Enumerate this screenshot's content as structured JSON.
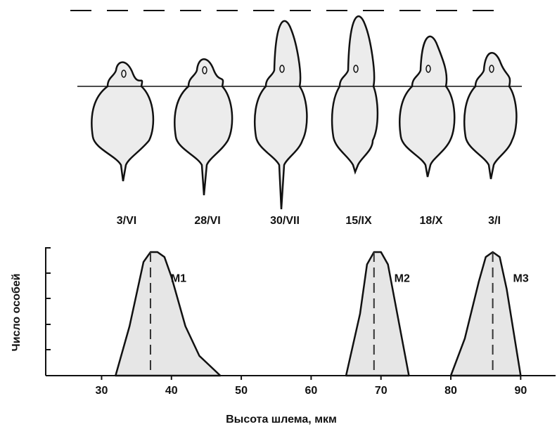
{
  "seasonal_forms": {
    "dates": [
      "3/VI",
      "28/VI",
      "30/VII",
      "15/IX",
      "18/X",
      "3/I"
    ]
  },
  "chart_data": {
    "type": "area",
    "xlabel": "Высота шлема, мкм",
    "ylabel": "Число особей",
    "xlim": [
      22,
      95
    ],
    "xticks": [
      30,
      40,
      50,
      60,
      70,
      80,
      90
    ],
    "ylim": [
      0,
      5.2
    ],
    "series": [
      {
        "name": "M1",
        "color": "#e6e6e6",
        "x": [
          32,
          34,
          36,
          37,
          38,
          39,
          40,
          42,
          44,
          47
        ],
        "values": [
          0,
          2,
          4.6,
          5,
          5,
          4.8,
          4,
          2,
          0.8,
          0
        ]
      },
      {
        "name": "M2",
        "color": "#e6e6e6",
        "x": [
          65,
          67,
          68,
          69,
          70,
          71,
          72,
          74
        ],
        "values": [
          0,
          2.5,
          4.5,
          5,
          5,
          4.5,
          3,
          0
        ]
      },
      {
        "name": "M3",
        "color": "#e6e6e6",
        "x": [
          80,
          82,
          84,
          85,
          86,
          87,
          88,
          90
        ],
        "values": [
          0,
          1.5,
          3.8,
          4.8,
          5,
          4.8,
          3.5,
          0
        ]
      }
    ]
  }
}
